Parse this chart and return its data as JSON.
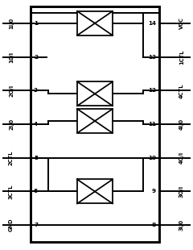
{
  "fig_width": 2.4,
  "fig_height": 3.1,
  "dpi": 100,
  "bg_color": "#ffffff",
  "line_color": "#000000",
  "lw": 1.4,
  "left_pin_labels": [
    "1I/0",
    "10/I",
    "2O/I",
    "2I/0",
    "2CTL",
    "3CTL",
    "GND"
  ],
  "left_pin_nums": [
    "1",
    "2",
    "3",
    "4",
    "5",
    "6",
    "7"
  ],
  "right_pin_labels": [
    "VCC",
    "1CTL",
    "4CTL",
    "4I/0",
    "4O/I",
    "3O/I",
    "3I/0"
  ],
  "right_pin_nums": [
    "14",
    "13",
    "12",
    "11",
    "10",
    "9",
    "8"
  ],
  "pin_font": 5.2,
  "label_font": 4.8
}
